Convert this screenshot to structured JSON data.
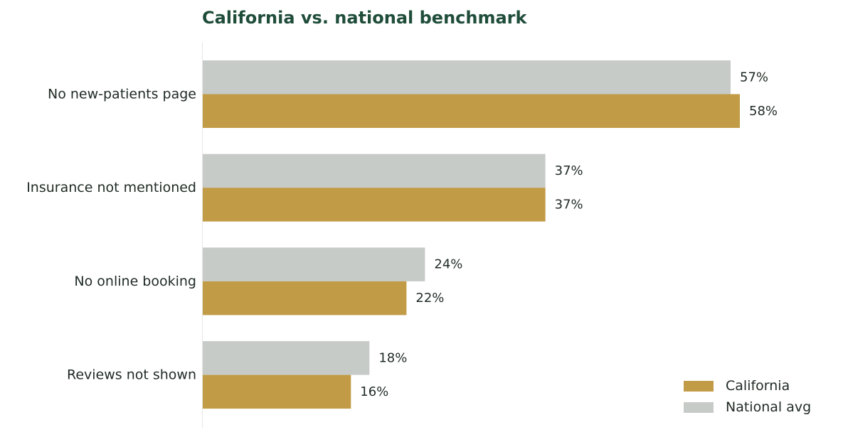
{
  "chart_data": {
    "type": "bar",
    "orientation": "horizontal",
    "title": "California vs. national benchmark",
    "categories": [
      "No new-patients page",
      "Insurance not mentioned",
      "No online booking",
      "Reviews not shown"
    ],
    "series": [
      {
        "name": "National avg",
        "color": "#c7cbc8",
        "values": [
          57,
          37,
          24,
          18
        ],
        "labels": [
          "57%",
          "37%",
          "24%",
          "18%"
        ]
      },
      {
        "name": "California",
        "color": "#c19b45",
        "values": [
          58,
          37,
          22,
          16
        ],
        "labels": [
          "58%",
          "37%",
          "22%",
          "16%"
        ]
      }
    ],
    "xlim": [
      0,
      67
    ],
    "grid": false,
    "legend": {
      "placement": "bottom-right",
      "entries": [
        {
          "name": "California",
          "color": "#c19b45"
        },
        {
          "name": "National avg",
          "color": "#c7cbc8"
        }
      ]
    }
  }
}
